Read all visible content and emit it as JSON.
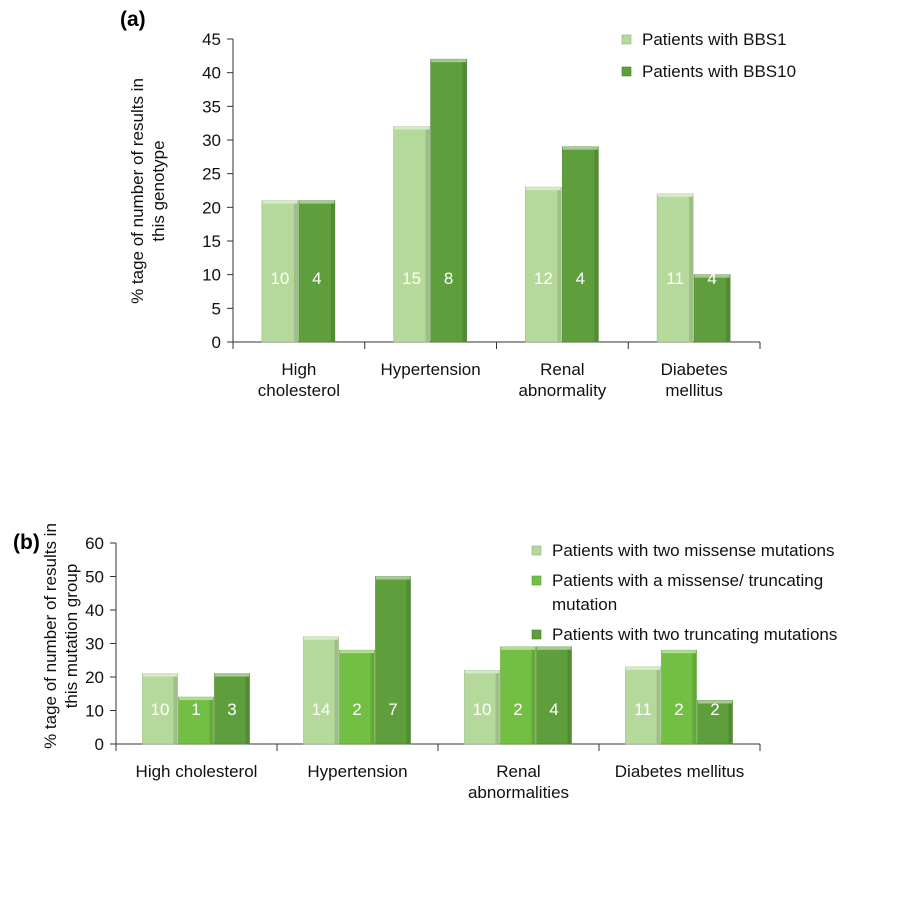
{
  "chart_data": [
    {
      "type": "bar",
      "panel_label": "(a)",
      "ylabel_lines": [
        "% tage of number of results in",
        "this genotype"
      ],
      "categories": [
        [
          "High",
          "cholesterol"
        ],
        [
          "Hypertension"
        ],
        [
          "Renal",
          "abnormality"
        ],
        [
          "Diabetes",
          "mellitus"
        ]
      ],
      "ylim": [
        0,
        45
      ],
      "yticks": [
        0,
        5,
        10,
        15,
        20,
        25,
        30,
        35,
        40,
        45
      ],
      "legend_position": "top-right",
      "series": [
        {
          "name": "Patients with BBS1",
          "color": "#b5d99a",
          "values": [
            21,
            32,
            23,
            22
          ],
          "labels": [
            "10",
            "15",
            "12",
            "11"
          ]
        },
        {
          "name": "Patients with BBS10",
          "color": "#5e9e3c",
          "values": [
            21,
            42,
            29,
            10
          ],
          "labels": [
            "4",
            "8",
            "4",
            "4"
          ]
        }
      ]
    },
    {
      "type": "bar",
      "panel_label": "(b)",
      "ylabel_lines": [
        "% tage of number of results in",
        "this mutation group"
      ],
      "categories": [
        [
          "High cholesterol"
        ],
        [
          "Hypertension"
        ],
        [
          "Renal",
          "abnormalities"
        ],
        [
          "Diabetes mellitus"
        ]
      ],
      "ylim": [
        0,
        60
      ],
      "yticks": [
        0,
        10,
        20,
        30,
        40,
        50,
        60
      ],
      "legend_position": "top-right",
      "series": [
        {
          "name_lines": [
            "Patients with two missense mutations"
          ],
          "color": "#b5d99a",
          "values": [
            21,
            32,
            22,
            23
          ],
          "labels": [
            "10",
            "14",
            "10",
            "11"
          ]
        },
        {
          "name_lines": [
            "Patients with a missense/ truncating",
            "mutation"
          ],
          "color": "#72bf44",
          "values": [
            14,
            28,
            29,
            28
          ],
          "labels": [
            "1",
            "2",
            "2",
            "2"
          ]
        },
        {
          "name_lines": [
            "Patients with two truncating mutations"
          ],
          "color": "#5e9e3c",
          "values": [
            21,
            50,
            29,
            13
          ],
          "labels": [
            "3",
            "7",
            "4",
            "2"
          ]
        }
      ]
    }
  ]
}
